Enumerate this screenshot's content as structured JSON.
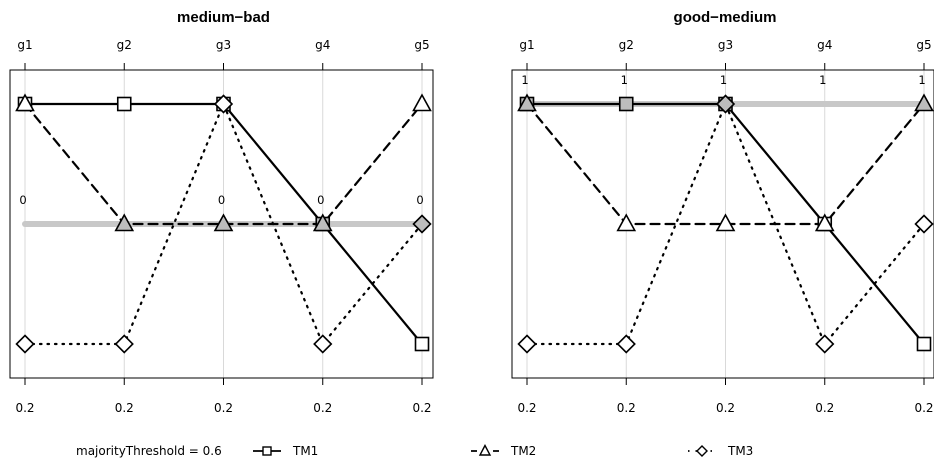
{
  "chart_data": [
    {
      "type": "line",
      "title": "medium−bad",
      "categories": [
        "g1",
        "g2",
        "g3",
        "g4",
        "g5"
      ],
      "bottom_labels": [
        "0.2",
        "0.2",
        "0.2",
        "0.2",
        "0.2"
      ],
      "ylim": [
        -1,
        1
      ],
      "grid": "vertical",
      "threshold": {
        "values": [
          0,
          0,
          0,
          0,
          0
        ],
        "labels": [
          "0",
          "",
          "0",
          "0",
          "0"
        ],
        "color": "#c8c8c8"
      },
      "series": [
        {
          "name": "TM1",
          "values": [
            1,
            1,
            1,
            0,
            -1
          ],
          "dash": "solid",
          "marker": "square"
        },
        {
          "name": "TM2",
          "values": [
            1,
            0,
            0,
            0,
            1
          ],
          "dash": "dashed",
          "marker": "triangle"
        },
        {
          "name": "TM3",
          "values": [
            -1,
            -1,
            1,
            -1,
            0
          ],
          "dash": "dotted",
          "marker": "diamond"
        }
      ]
    },
    {
      "type": "line",
      "title": "good−medium",
      "categories": [
        "g1",
        "g2",
        "g3",
        "g4",
        "g5"
      ],
      "bottom_labels": [
        "0.2",
        "0.2",
        "0.2",
        "0.2",
        "0.2"
      ],
      "ylim": [
        -1,
        1
      ],
      "grid": "vertical",
      "threshold": {
        "values": [
          1,
          1,
          1,
          1,
          1
        ],
        "labels": [
          "1",
          "1",
          "1",
          "1",
          "1"
        ],
        "color": "#c8c8c8"
      },
      "series": [
        {
          "name": "TM1",
          "values": [
            1,
            1,
            1,
            0,
            -1
          ],
          "dash": "solid",
          "marker": "square"
        },
        {
          "name": "TM2",
          "values": [
            1,
            0,
            0,
            0,
            1
          ],
          "dash": "dashed",
          "marker": "triangle"
        },
        {
          "name": "TM3",
          "values": [
            -1,
            -1,
            1,
            -1,
            0
          ],
          "dash": "dotted",
          "marker": "diamond"
        }
      ]
    }
  ],
  "legend": {
    "placement": "bottom",
    "label": "majorityThreshold = 0.6",
    "items": [
      "TM1",
      "TM2",
      "TM3"
    ]
  }
}
